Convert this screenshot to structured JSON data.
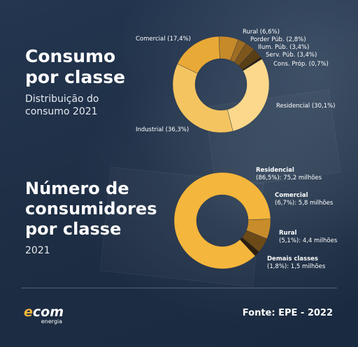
{
  "section1": {
    "title_lines": [
      "Consumo",
      "por classe"
    ],
    "subtitle_lines": [
      "Distribuição do",
      "consumo 2021"
    ]
  },
  "section2": {
    "title_lines": [
      "Número de",
      "consumidores",
      "por classe"
    ],
    "subtitle_lines": [
      "2021"
    ]
  },
  "colors": {
    "background": "#203047",
    "gold": "#f4b63c",
    "light_gold": "#fbd88b",
    "dark_brown": "#3a2810",
    "text": "#ffffff"
  },
  "chart_data": [
    {
      "type": "pie",
      "variant": "donut",
      "title": "",
      "slices": [
        {
          "name": "Residencial",
          "value": 30.1,
          "label": "Residencial (30,1%)",
          "color": "#fbd88b"
        },
        {
          "name": "Industrial",
          "value": 36.3,
          "label": "Industrial (36,3%)",
          "color": "#f4c460"
        },
        {
          "name": "Comercial",
          "value": 17.4,
          "label": "Comercial (17,4%)",
          "color": "#e9a936"
        },
        {
          "name": "Rural",
          "value": 6.6,
          "label": "Rural (6,6%)",
          "color": "#c68a29"
        },
        {
          "name": "Porder Púb.",
          "value": 2.8,
          "label": "Porder Púb. (2,8%)",
          "color": "#9e6c22"
        },
        {
          "name": "Ilum. Púb.",
          "value": 3.4,
          "label": "Ilum. Púb. (3,4%)",
          "color": "#7d561d"
        },
        {
          "name": "Serv. Púb.",
          "value": 3.4,
          "label": "Serv. Púb. (3,4%)",
          "color": "#5a3e16"
        },
        {
          "name": "Cons. Próp.",
          "value": 0.7,
          "label": "Cons. Próp. (0,7%)",
          "color": "#2e210e"
        }
      ]
    },
    {
      "type": "pie",
      "variant": "donut",
      "title": "",
      "slices": [
        {
          "name": "Residencial",
          "value": 86.5,
          "label_name": "Residencial",
          "label_detail": "(86,5%): 75,2 milhões",
          "color": "#f4b63c"
        },
        {
          "name": "Comercial",
          "value": 6.7,
          "label_name": "Comercial",
          "label_detail": "(6,7%): 5,8 milhões",
          "color": "#c98c2a"
        },
        {
          "name": "Rural",
          "value": 5.1,
          "label_name": "Rural",
          "label_detail": "(5,1%): 4,4 milhões",
          "color": "#6b4a18"
        },
        {
          "name": "Demais classes",
          "value": 1.8,
          "label_name": "Demais classes",
          "label_detail": "(1,8%): 1,5 milhões",
          "color": "#2c1f0c"
        }
      ]
    }
  ],
  "footer": {
    "logo_main_e": "e",
    "logo_main_rest": "com",
    "logo_sub": "energia",
    "source": "Fonte: EPE - 2022"
  }
}
